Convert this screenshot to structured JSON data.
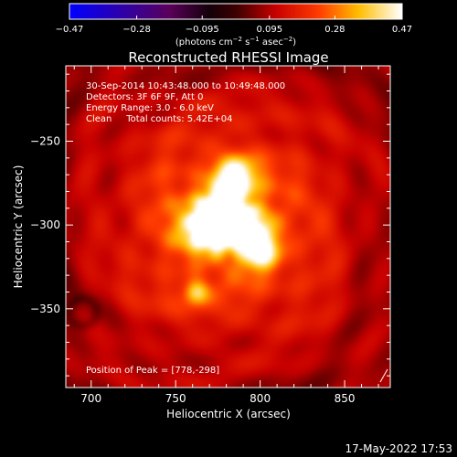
{
  "chart_data": {
    "type": "heatmap",
    "title": "Reconstructed RHESSI Image",
    "xlabel": "Heliocentric X (arcsec)",
    "ylabel": "Heliocentric Y (arcsec)",
    "xlim": [
      685,
      877
    ],
    "ylim": [
      -397,
      -205
    ],
    "x_ticks": [
      700,
      750,
      800,
      850
    ],
    "x_tick_labels": [
      "700",
      "750",
      "800",
      "850"
    ],
    "y_ticks": [
      -250,
      -300,
      -350
    ],
    "y_tick_labels": [
      "−250",
      "−300",
      "−350"
    ],
    "colorbar": {
      "range": [
        -0.47,
        0.47
      ],
      "ticks": [
        -0.47,
        -0.28,
        -0.095,
        0.095,
        0.28,
        0.47
      ],
      "tick_labels": [
        "−0.47",
        "−0.28",
        "−0.095",
        "0.095",
        "0.28",
        "0.47"
      ],
      "label_html": "(photons cm<tspan dy=\"-4\" font-size=\"7\">−2</tspan><tspan dy=\"4\"> s</tspan><tspan dy=\"-4\" font-size=\"7\">−1</tspan><tspan dy=\"4\"> asec</tspan><tspan dy=\"-4\" font-size=\"7\">−2</tspan><tspan dy=\"4\">)</tspan>",
      "colormap": "heat"
    },
    "info_lines": [
      "30-Sep-2014 10:43:48.000 to 10:49:48.000",
      "Detectors: 3F 6F 9F, Att 0",
      "Energy Range: 3.0 - 6.0 keV",
      "Clean     Total counts: 5.42E+04"
    ],
    "peak_label": "Position of Peak = [778,-298]",
    "peak": {
      "x": 778,
      "y": -298
    },
    "sources": [
      {
        "x": 778,
        "y": -298,
        "amplitude": 0.47,
        "sigma": 9
      },
      {
        "x": 785,
        "y": -272,
        "amplitude": 0.32,
        "sigma": 9
      },
      {
        "x": 768,
        "y": -300,
        "amplitude": 0.3,
        "sigma": 11
      },
      {
        "x": 800,
        "y": -315,
        "amplitude": 0.28,
        "sigma": 8
      },
      {
        "x": 795,
        "y": -300,
        "amplitude": 0.18,
        "sigma": 10
      },
      {
        "x": 762,
        "y": -340,
        "amplitude": 0.2,
        "sigma": 5
      },
      {
        "x": 780,
        "y": -300,
        "amplitude": 0.14,
        "sigma": 45
      }
    ],
    "background_level": 0.12
  },
  "footer": {
    "timestamp": "17-May-2022 17:53"
  }
}
